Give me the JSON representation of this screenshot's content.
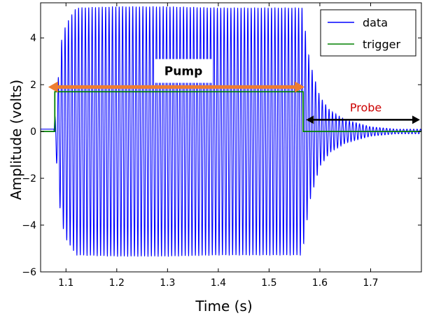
{
  "chart_data": {
    "type": "line",
    "xlabel": "Time (s)",
    "ylabel": "Amplitude (volts)",
    "xlim": [
      1.05,
      1.8
    ],
    "ylim": [
      -6,
      5.5
    ],
    "xticks": [
      "1.1",
      "1.2",
      "1.3",
      "1.4",
      "1.5",
      "1.6",
      "1.7"
    ],
    "xtick_values": [
      1.1,
      1.2,
      1.3,
      1.4,
      1.5,
      1.6,
      1.7
    ],
    "yticks": [
      "−6",
      "−4",
      "−2",
      "0",
      "2",
      "4"
    ],
    "ytick_values": [
      -6,
      -4,
      -2,
      0,
      2,
      4
    ],
    "grid": false,
    "legend": "top-right",
    "series": [
      {
        "name": "data",
        "color": "#0000ff",
        "description": "sinusoid ~150 Hz; baseline ~0.1 V before 1.075 s, ring-up to ~5.3 V amplitude by ~1.12 s, steady ~5.3 V until 1.565 s, then exponential ring-down to ~0.1 V by ~1.75 s",
        "x": [
          1.05,
          1.075,
          1.08,
          1.09,
          1.1,
          1.12,
          1.2,
          1.3,
          1.4,
          1.5,
          1.565,
          1.58,
          1.6,
          1.62,
          1.65,
          1.7,
          1.75,
          1.8
        ],
        "envelope": [
          0.1,
          0.1,
          0.9,
          3.8,
          4.6,
          5.3,
          5.35,
          5.35,
          5.3,
          5.3,
          5.3,
          3.0,
          1.5,
          0.9,
          0.5,
          0.2,
          0.1,
          0.1
        ]
      },
      {
        "name": "trigger",
        "color": "#008000",
        "x": [
          1.05,
          1.078,
          1.078,
          1.567,
          1.567,
          1.8
        ],
        "y": [
          0.0,
          0.0,
          1.7,
          1.7,
          0.0,
          0.0
        ]
      }
    ],
    "annotations": [
      {
        "text": "Pump",
        "x_start": 1.065,
        "x_end": 1.57,
        "y": 1.9,
        "color": "#ed7d31"
      },
      {
        "text": "Probe",
        "x_start": 1.57,
        "x_end": 1.8,
        "y": 0.5,
        "color": "#000000",
        "text_color": "#cc0000"
      }
    ]
  }
}
